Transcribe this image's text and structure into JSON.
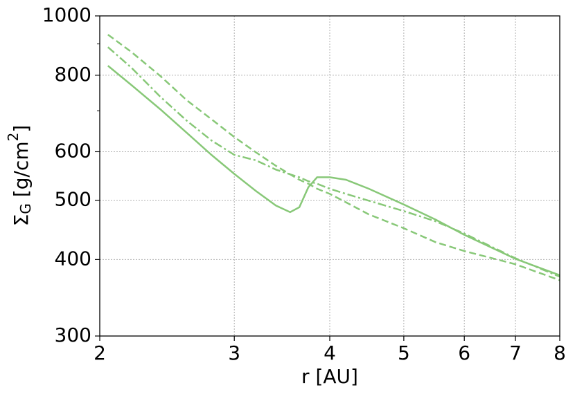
{
  "chart_data": {
    "type": "line",
    "xlabel": "r [AU]",
    "ylabel": [
      "Σ",
      "G",
      " [g/cm",
      "2",
      "]"
    ],
    "x": [
      2.05,
      2.2,
      2.4,
      2.6,
      2.8,
      3.0,
      3.2,
      3.4,
      3.55,
      3.65,
      3.75,
      3.85,
      4.0,
      4.2,
      4.5,
      5,
      5.5,
      6,
      7,
      8
    ],
    "series": [
      {
        "color": "#88c878",
        "dash": "solid",
        "values": [
          829,
          771,
          704,
          644,
          593,
          552,
          518,
          490,
          478,
          487,
          525,
          545,
          545,
          540,
          522,
          492,
          465,
          439,
          401,
          377
        ]
      },
      {
        "color": "#88c878",
        "dash": "dashdot",
        "values": [
          889,
          823,
          738,
          674,
          626,
          593,
          581,
          561,
          551,
          545,
          537,
          532,
          522,
          512,
          499,
          480,
          462,
          441,
          402,
          375
        ]
      },
      {
        "color": "#88c878",
        "dash": "dashed",
        "values": [
          932,
          873,
          798,
          728,
          678,
          634,
          599,
          569,
          551,
          540,
          532,
          522,
          512,
          496,
          474,
          450,
          427,
          413,
          393,
          370
        ]
      }
    ],
    "xscale": "log",
    "yscale": "log",
    "xlim": [
      2,
      8
    ],
    "ylim": [
      300,
      1000
    ],
    "xticks": [
      2,
      3,
      4,
      5,
      6,
      7,
      8
    ],
    "yticks": [
      300,
      400,
      500,
      600,
      800,
      1000
    ],
    "yminorticks": [
      700,
      900
    ],
    "grid": true
  }
}
